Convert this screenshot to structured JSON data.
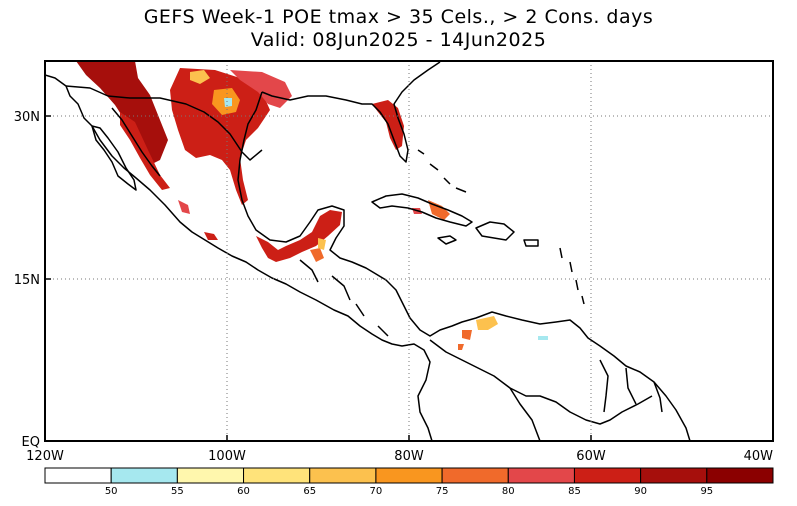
{
  "title": {
    "line1": "GEFS Week-1 POE tmax > 35 Cels., > 2 Cons. days",
    "line2": "Valid: 08Jun2025 - 14Jun2025"
  },
  "axes": {
    "lat_labels": [
      "30N",
      "15N",
      "EQ"
    ],
    "lon_labels": [
      "120W",
      "100W",
      "80W",
      "60W",
      "40W"
    ]
  },
  "colorbar": {
    "labels": [
      "50",
      "55",
      "60",
      "65",
      "70",
      "75",
      "80",
      "85",
      "90",
      "95"
    ],
    "colors": [
      "#ffffff",
      "#a6e8ef",
      "#fff7ad",
      "#ffe37a",
      "#fcc14e",
      "#f9961f",
      "#f06a2b",
      "#e3474a",
      "#cc1f16",
      "#a60f0c",
      "#8b0000"
    ]
  }
}
